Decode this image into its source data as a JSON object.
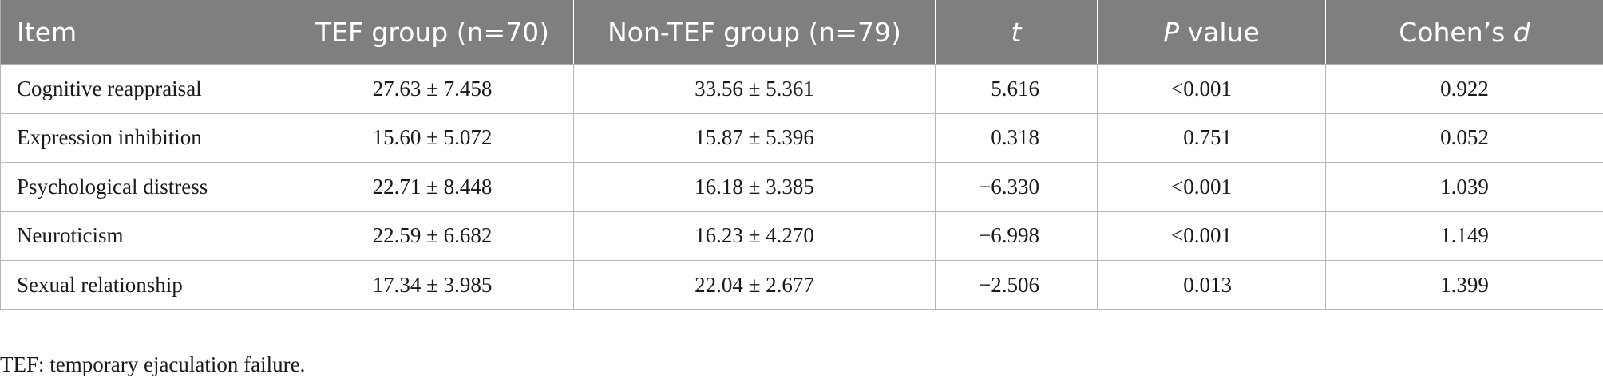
{
  "table": {
    "headers": {
      "item": "Item",
      "tef_group": "TEF group (n=70)",
      "non_tef_group": "Non-TEF group (n=79)",
      "t": "t",
      "p_value_italic": "P",
      "p_value_rest": " value",
      "cohens_d_prefix": "Cohen’s ",
      "cohens_d_italic": "d"
    },
    "rows": [
      {
        "item": "Cognitive reappraisal",
        "tef": "27.63 ± 7.458",
        "non_tef": "33.56 ± 5.361",
        "t": "5.616",
        "p": "<0.001",
        "d": "0.922"
      },
      {
        "item": "Expression inhibition",
        "tef": "15.60 ± 5.072",
        "non_tef": "15.87 ± 5.396",
        "t": "0.318",
        "p": "0.751",
        "d": "0.052"
      },
      {
        "item": "Psychological distress",
        "tef": "22.71 ± 8.448",
        "non_tef": "16.18 ± 3.385",
        "t": "−6.330",
        "p": "<0.001",
        "d": "1.039"
      },
      {
        "item": "Neuroticism",
        "tef": "22.59 ± 6.682",
        "non_tef": "16.23 ± 4.270",
        "t": "−6.998",
        "p": "<0.001",
        "d": "1.149"
      },
      {
        "item": "Sexual relationship",
        "tef": "17.34 ± 3.985",
        "non_tef": "22.04 ± 2.677",
        "t": "−2.506",
        "p": "0.013",
        "d": "1.399"
      }
    ]
  },
  "footnote": "TEF: temporary ejaculation failure.",
  "colors": {
    "header_background": "#7f7f7f",
    "header_text": "#ffffff",
    "grid_lines": "#b7b7b7",
    "body_text": "#1a1a1a"
  }
}
